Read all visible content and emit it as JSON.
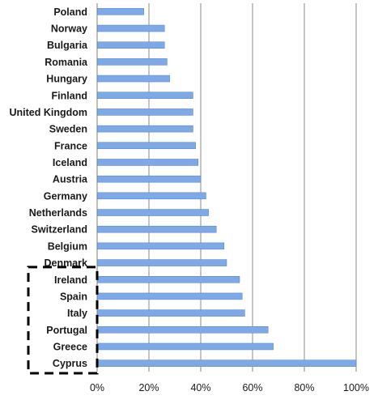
{
  "chart_data": {
    "type": "bar",
    "orientation": "horizontal",
    "categories": [
      "Poland",
      "Norway",
      "Bulgaria",
      "Romania",
      "Hungary",
      "Finland",
      "United Kingdom",
      "Sweden",
      "France",
      "Iceland",
      "Austria",
      "Germany",
      "Netherlands",
      "Switzerland",
      "Belgium",
      "Denmark",
      "Ireland",
      "Spain",
      "Italy",
      "Portugal",
      "Greece",
      "Cyprus"
    ],
    "values": [
      18,
      26,
      26,
      27,
      28,
      37,
      37,
      37,
      38,
      39,
      40,
      42,
      43,
      46,
      49,
      50,
      55,
      56,
      57,
      66,
      68,
      100
    ],
    "xlim": [
      0,
      100
    ],
    "xticks": [
      "0%",
      "20%",
      "40%",
      "60%",
      "80%",
      "100%"
    ],
    "title": "",
    "xlabel": "",
    "ylabel": "",
    "grid": "vertical",
    "legend": "none",
    "bar_color": "#7ea9e6",
    "bar_edge_color": "#4a7fcf",
    "highlight_box": {
      "style": "dashed",
      "categories": [
        "Ireland",
        "Spain",
        "Italy",
        "Portugal",
        "Greece",
        "Cyprus"
      ]
    }
  }
}
